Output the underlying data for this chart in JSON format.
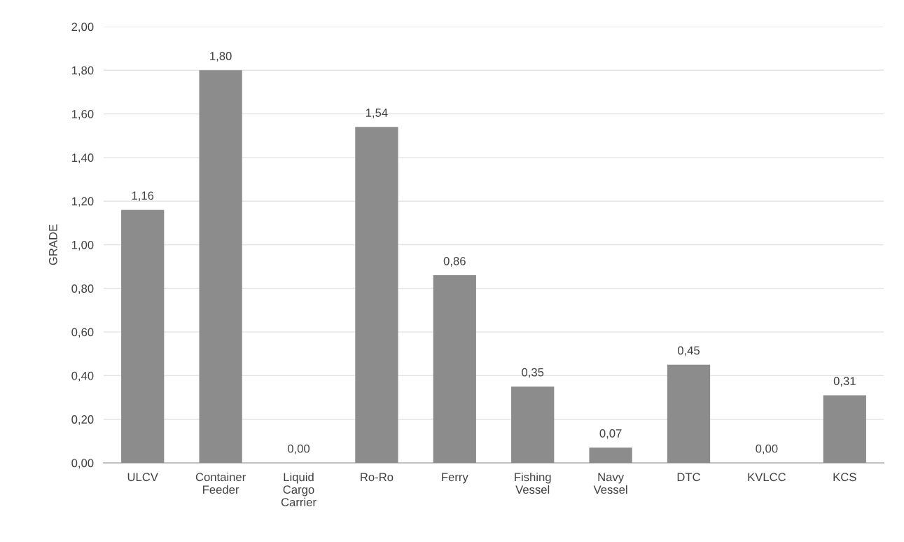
{
  "chart_data": {
    "type": "bar",
    "ylabel": "GRADE",
    "categories": [
      "ULCV",
      "Container\nFeeder",
      "Liquid\nCargo\nCarrier",
      "Ro-Ro",
      "Ferry",
      "Fishing\nVessel",
      "Navy\nVessel",
      "DTC",
      "KVLCC",
      "KCS"
    ],
    "values": [
      1.16,
      1.8,
      0.0,
      1.54,
      0.86,
      0.35,
      0.07,
      0.45,
      0.0,
      0.31
    ],
    "value_labels": [
      "1,16",
      "1,80",
      "0,00",
      "1,54",
      "0,86",
      "0,35",
      "0,07",
      "0,45",
      "0,00",
      "0,31"
    ],
    "color": "#8c8c8c",
    "ylim": [
      0,
      2
    ],
    "yticks": [
      {
        "value": 0,
        "label": "0,00"
      },
      {
        "value": 0.2,
        "label": "0,20"
      },
      {
        "value": 0.4,
        "label": "0,40"
      },
      {
        "value": 0.6,
        "label": "0,60"
      },
      {
        "value": 0.8,
        "label": "0,80"
      },
      {
        "value": 1.0,
        "label": "1,00"
      },
      {
        "value": 1.2,
        "label": "1,20"
      },
      {
        "value": 1.4,
        "label": "1,40"
      },
      {
        "value": 1.6,
        "label": "1,60"
      },
      {
        "value": 1.8,
        "label": "1,80"
      },
      {
        "value": 2.0,
        "label": "2,00"
      }
    ],
    "grid": "y"
  }
}
